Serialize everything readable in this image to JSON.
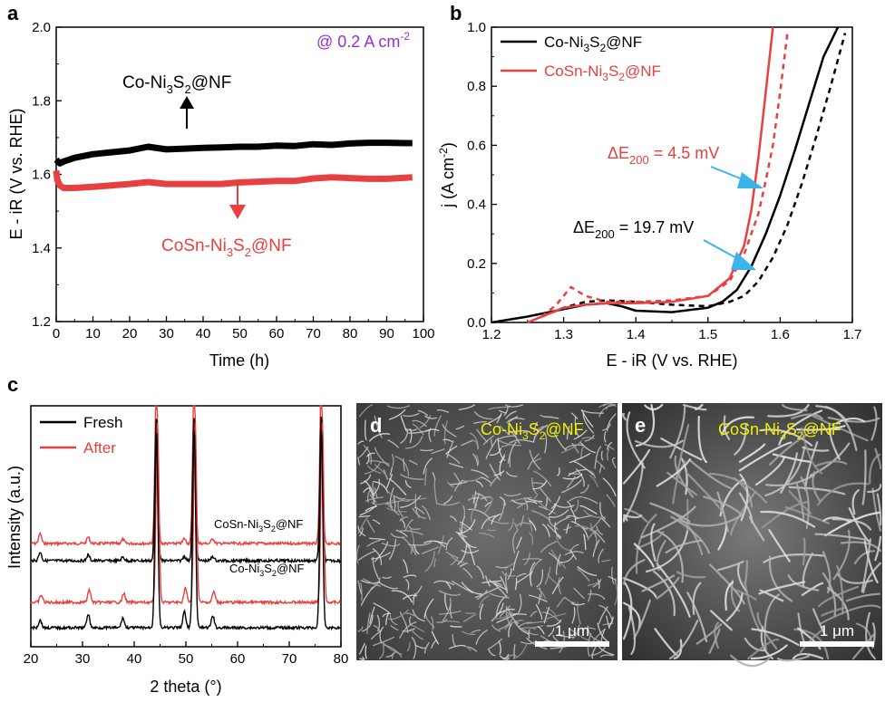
{
  "panels": {
    "a": {
      "letter": "a"
    },
    "b": {
      "letter": "b"
    },
    "c": {
      "letter": "c"
    },
    "d": {
      "letter": "d",
      "label_main": "Co-Ni",
      "label_sub1": "3",
      "label_mid": "S",
      "label_sub2": "2",
      "label_end": "@NF",
      "scale_bar": "1 μm"
    },
    "e": {
      "letter": "e",
      "label_main": "CoSn-Ni",
      "label_sub1": "3",
      "label_mid": "S",
      "label_sub2": "2",
      "label_end": "@NF",
      "scale_bar": "1 μm"
    }
  },
  "colors": {
    "black": "#000000",
    "red": "#e8403f",
    "purple": "#9b2fc9",
    "yellow": "#f0f000",
    "blue": "#3bb4e8"
  },
  "chart_data": [
    {
      "id": "a",
      "type": "line",
      "title": "",
      "xlabel": "Time (h)",
      "ylabel": "E - iR (V vs. RHE)",
      "xlim": [
        0,
        100
      ],
      "ylim": [
        1.2,
        2.0
      ],
      "xticks": [
        "0",
        "10",
        "20",
        "30",
        "40",
        "50",
        "60",
        "70",
        "80",
        "90",
        "100"
      ],
      "yticks": [
        "1.2",
        "1.4",
        "1.6",
        "1.8",
        "2.0"
      ],
      "annotation": "@ 0.2 A cm",
      "annotation_sup": "-2",
      "series": [
        {
          "name": "Co-Ni3S2@NF",
          "label_main": "Co-Ni",
          "label_sub1": "3",
          "label_mid": "S",
          "label_sub2": "2",
          "label_end": "@NF",
          "color": "#000000",
          "x": [
            0,
            1,
            2,
            5,
            10,
            15,
            20,
            25,
            30,
            35,
            40,
            45,
            50,
            55,
            60,
            65,
            70,
            75,
            80,
            85,
            90,
            95,
            97
          ],
          "y": [
            1.64,
            1.63,
            1.635,
            1.645,
            1.655,
            1.66,
            1.665,
            1.675,
            1.668,
            1.67,
            1.672,
            1.673,
            1.675,
            1.675,
            1.678,
            1.677,
            1.682,
            1.68,
            1.684,
            1.686,
            1.686,
            1.685,
            1.685
          ]
        },
        {
          "name": "CoSn-Ni3S2@NF",
          "label_main": "CoSn-Ni",
          "label_sub1": "3",
          "label_mid": "S",
          "label_sub2": "2",
          "label_end": "@NF",
          "color": "#e8403f",
          "x": [
            0,
            0.3,
            1,
            2,
            5,
            10,
            15,
            20,
            25,
            30,
            35,
            40,
            45,
            50,
            55,
            60,
            65,
            70,
            75,
            80,
            85,
            90,
            95,
            97
          ],
          "y": [
            1.61,
            1.585,
            1.57,
            1.563,
            1.563,
            1.566,
            1.57,
            1.574,
            1.579,
            1.574,
            1.574,
            1.574,
            1.574,
            1.578,
            1.58,
            1.582,
            1.582,
            1.589,
            1.592,
            1.59,
            1.588,
            1.588,
            1.591,
            1.592
          ]
        }
      ]
    },
    {
      "id": "b",
      "type": "line",
      "title": "",
      "xlabel": "E - iR (V vs. RHE)",
      "ylabel": "j (A cm",
      "ylabel_sup": "-2",
      "ylabel_end": ")",
      "xlim": [
        1.2,
        1.7
      ],
      "ylim": [
        0,
        1.0
      ],
      "xticks": [
        "1.2",
        "1.3",
        "1.4",
        "1.5",
        "1.6",
        "1.7"
      ],
      "yticks": [
        "0.0",
        "0.2",
        "0.4",
        "0.6",
        "0.8",
        "1.0"
      ],
      "annotations": [
        {
          "text": "ΔE",
          "sub": "200",
          "rest": " = 4.5 mV",
          "color": "#e8403f"
        },
        {
          "text": "ΔE",
          "sub": "200",
          "rest": " = 19.7 mV",
          "color": "#000000"
        }
      ],
      "series": [
        {
          "name": "Co-Ni3S2@NF",
          "style": "solid",
          "color": "#000000",
          "x": [
            1.2,
            1.25,
            1.3,
            1.33,
            1.36,
            1.38,
            1.4,
            1.45,
            1.5,
            1.52,
            1.54,
            1.56,
            1.58,
            1.6,
            1.62,
            1.64,
            1.66,
            1.68
          ],
          "y": [
            0.0,
            0.02,
            0.045,
            0.06,
            0.065,
            0.055,
            0.04,
            0.035,
            0.05,
            0.07,
            0.11,
            0.19,
            0.3,
            0.43,
            0.58,
            0.74,
            0.9,
            1.0
          ]
        },
        {
          "name": "Co-Ni3S2@NF (after)",
          "style": "dashed",
          "color": "#000000",
          "x": [
            1.27,
            1.3,
            1.33,
            1.36,
            1.4,
            1.45,
            1.5,
            1.53,
            1.55,
            1.57,
            1.59,
            1.61,
            1.63,
            1.65,
            1.67,
            1.69
          ],
          "y": [
            0.02,
            0.05,
            0.07,
            0.075,
            0.07,
            0.06,
            0.055,
            0.07,
            0.09,
            0.14,
            0.22,
            0.33,
            0.47,
            0.63,
            0.8,
            0.98
          ]
        },
        {
          "name": "CoSn-Ni3S2@NF",
          "style": "solid",
          "color": "#e8403f",
          "x": [
            1.25,
            1.28,
            1.3,
            1.33,
            1.36,
            1.4,
            1.45,
            1.5,
            1.53,
            1.55,
            1.56,
            1.57,
            1.58,
            1.59
          ],
          "y": [
            0.0,
            0.03,
            0.05,
            0.06,
            0.065,
            0.065,
            0.07,
            0.09,
            0.15,
            0.26,
            0.38,
            0.56,
            0.78,
            1.0
          ]
        },
        {
          "name": "CoSn-Ni3S2@NF (after)",
          "style": "dashed",
          "color": "#e8403f",
          "x": [
            1.27,
            1.29,
            1.31,
            1.33,
            1.36,
            1.4,
            1.45,
            1.5,
            1.53,
            1.55,
            1.57,
            1.58,
            1.59,
            1.6,
            1.61
          ],
          "y": [
            0.02,
            0.06,
            0.12,
            0.09,
            0.07,
            0.07,
            0.075,
            0.09,
            0.14,
            0.23,
            0.37,
            0.48,
            0.6,
            0.78,
            0.98
          ]
        }
      ],
      "legend": [
        {
          "label_main": "Co-Ni",
          "label_sub1": "3",
          "label_mid": "S",
          "label_sub2": "2",
          "label_end": "@NF",
          "color": "#000000"
        },
        {
          "label_main": "CoSn-Ni",
          "label_sub1": "3",
          "label_mid": "S",
          "label_sub2": "2",
          "label_end": "@NF",
          "color": "#e8403f"
        }
      ]
    },
    {
      "id": "c",
      "type": "line",
      "title": "",
      "xlabel": "2 theta (°)",
      "ylabel": "Intensity (a.u.)",
      "xlim": [
        20,
        80
      ],
      "xticks": [
        "20",
        "30",
        "40",
        "50",
        "60",
        "70",
        "80"
      ],
      "legend": [
        {
          "label": "Fresh",
          "color": "#000000"
        },
        {
          "label": "After",
          "color": "#e8403f"
        }
      ],
      "sample_labels": [
        {
          "label_main": "CoSn-Ni",
          "label_sub1": "3",
          "label_mid": "S",
          "label_sub2": "2",
          "label_end": "@NF"
        },
        {
          "label_main": "Co-Ni",
          "label_sub1": "3",
          "label_mid": "S",
          "label_sub2": "2",
          "label_end": "@NF"
        }
      ],
      "peaks": [
        {
          "two_theta": 21.8,
          "bottom": 8,
          "top": 12
        },
        {
          "two_theta": 31.1,
          "bottom": 14,
          "top": 8
        },
        {
          "two_theta": 37.8,
          "bottom": 10,
          "top": 5
        },
        {
          "two_theta": 44.3,
          "bottom": 200,
          "top": 200
        },
        {
          "two_theta": 49.7,
          "bottom": 16,
          "top": 6
        },
        {
          "two_theta": 51.6,
          "bottom": 200,
          "top": 200
        },
        {
          "two_theta": 55.2,
          "bottom": 12,
          "top": 6
        },
        {
          "two_theta": 76.2,
          "bottom": 200,
          "top": 200
        }
      ]
    }
  ]
}
